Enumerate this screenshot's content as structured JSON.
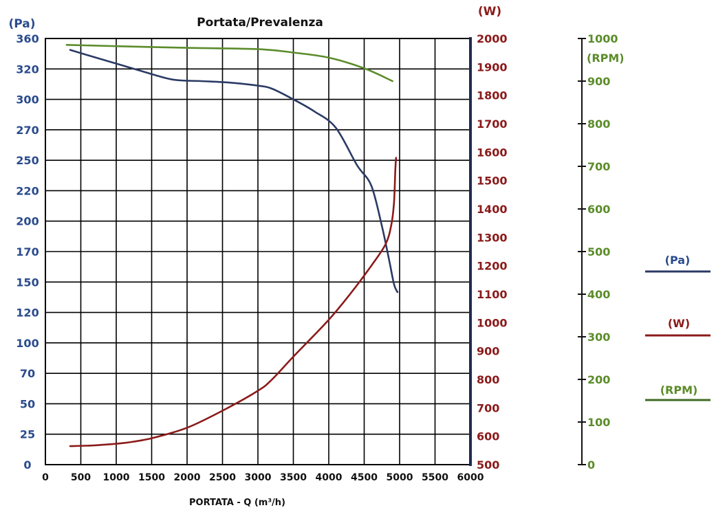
{
  "chart_data": {
    "type": "line",
    "title": "Portata/Prevalenza",
    "xlabel": "PORTATA -  Q (m³/h)",
    "xlim": [
      0,
      6000
    ],
    "x_ticks": [
      "0",
      "500",
      "1000",
      "1500",
      "2000",
      "2500",
      "3000",
      "3500",
      "4000",
      "4500",
      "5000",
      "5500",
      "6000"
    ],
    "grid": true,
    "axes": {
      "pa": {
        "unit_label": "(Pa)",
        "color": "#2a4b8d",
        "ticks": [
          "0",
          "25",
          "50",
          "70",
          "100",
          "120",
          "150",
          "170",
          "200",
          "220",
          "250",
          "270",
          "300",
          "320",
          "360"
        ]
      },
      "w": {
        "unit_label": "(W)",
        "color": "#8b1a1a",
        "ticks": [
          "500",
          "600",
          "700",
          "800",
          "900",
          "1000",
          "1100",
          "1200",
          "1300",
          "1400",
          "1500",
          "1600",
          "1700",
          "1800",
          "1900",
          "2000"
        ],
        "ylim": [
          500,
          2000
        ]
      },
      "rpm": {
        "unit_label": "(RPM)",
        "color": "#5b8c2a",
        "ticks": [
          "0",
          "100",
          "200",
          "300",
          "400",
          "500",
          "600",
          "700",
          "800",
          "900",
          "1000"
        ],
        "ylim": [
          0,
          1000
        ]
      }
    },
    "series": [
      {
        "name": "(Pa)",
        "axis": "pa",
        "color": "#2a3a64",
        "points": [
          [
            350,
            345
          ],
          [
            600,
            338
          ],
          [
            1000,
            327
          ],
          [
            1400,
            318
          ],
          [
            1800,
            313
          ],
          [
            2200,
            312
          ],
          [
            2600,
            311
          ],
          [
            3000,
            309
          ],
          [
            3200,
            307
          ],
          [
            3500,
            300
          ],
          [
            3800,
            288
          ],
          [
            4100,
            272
          ],
          [
            4400,
            245
          ],
          [
            4600,
            225
          ],
          [
            4750,
            195
          ],
          [
            4850,
            165
          ],
          [
            4920,
            148
          ],
          [
            4970,
            140
          ]
        ]
      },
      {
        "name": "(W)",
        "axis": "w",
        "color": "#8b1a1a",
        "points": [
          [
            350,
            565
          ],
          [
            700,
            568
          ],
          [
            1100,
            576
          ],
          [
            1500,
            593
          ],
          [
            2000,
            630
          ],
          [
            2500,
            690
          ],
          [
            3000,
            760
          ],
          [
            3200,
            800
          ],
          [
            3500,
            880
          ],
          [
            4000,
            1010
          ],
          [
            4300,
            1100
          ],
          [
            4600,
            1200
          ],
          [
            4800,
            1275
          ],
          [
            4880,
            1340
          ],
          [
            4920,
            1420
          ],
          [
            4940,
            1540
          ],
          [
            4950,
            1580
          ]
        ]
      },
      {
        "name": "(RPM)",
        "axis": "rpm",
        "color": "#5b8c2a",
        "points": [
          [
            300,
            985
          ],
          [
            1000,
            982
          ],
          [
            2000,
            978
          ],
          [
            3000,
            975
          ],
          [
            3500,
            967
          ],
          [
            4000,
            955
          ],
          [
            4500,
            930
          ],
          [
            4900,
            900
          ]
        ]
      }
    ]
  }
}
